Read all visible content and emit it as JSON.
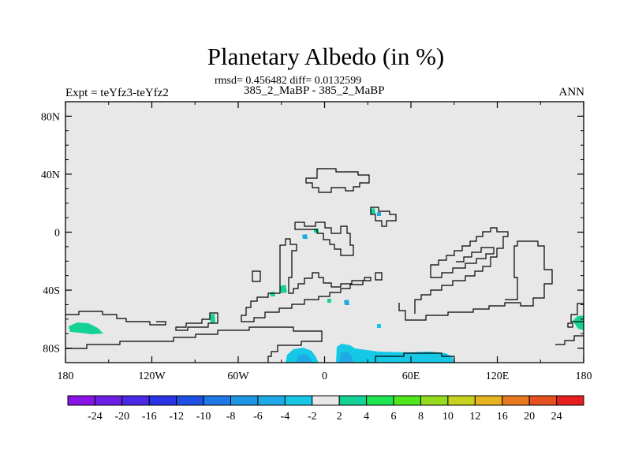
{
  "title": "Planetary Albedo (in %)",
  "stats_line": "rmsd= 0.456482 diff= 0.0132599",
  "case_line": "385_2_MaBP - 385_2_MaBP",
  "experiment_label": "Expt = teYfz3-teYfz2",
  "season_label": "ANN",
  "colors": {
    "background": "#e8e8e8",
    "coastline": "#000000",
    "frame": "#000000"
  },
  "map": {
    "lat_ticks": [
      "80N",
      "40N",
      "0",
      "40S",
      "80S"
    ],
    "lon_ticks": [
      "180",
      "120W",
      "60W",
      "0",
      "60E",
      "120E",
      "180"
    ]
  },
  "colorbar": {
    "labels": [
      "-24",
      "-20",
      "-16",
      "-12",
      "-10",
      "-8",
      "-6",
      "-4",
      "-2",
      "2",
      "4",
      "6",
      "8",
      "10",
      "12",
      "16",
      "20",
      "24"
    ],
    "colors": [
      "#8a14e6",
      "#6a1ee6",
      "#4a28e6",
      "#2a32e6",
      "#1e50e6",
      "#1e78e6",
      "#1e96e6",
      "#1eaae6",
      "#14c8e6",
      "#e8e8e8",
      "#14d296",
      "#1ee650",
      "#50e61e",
      "#96dc1e",
      "#c8d21e",
      "#e6b41e",
      "#e6781e",
      "#e6501e",
      "#e61e1e"
    ]
  },
  "chart_data": {
    "type": "heatmap",
    "title": "Planetary Albedo (in %)",
    "x_range": [
      -180,
      180
    ],
    "y_range": [
      -90,
      90
    ],
    "x_ticks": [
      -180,
      -120,
      -60,
      0,
      60,
      120,
      180
    ],
    "y_ticks": [
      80,
      40,
      0,
      -40,
      -80
    ],
    "contour_levels": [
      -24,
      -20,
      -16,
      -12,
      -10,
      -8,
      -6,
      -4,
      -2,
      2,
      4,
      6,
      8,
      10,
      12,
      16,
      20,
      24
    ],
    "rmsd": 0.456482,
    "diff": 0.0132599,
    "notable_anomalies": [
      {
        "region": "Antarctic coast",
        "lon_range": [
          -25,
          -5
        ],
        "lat_range": [
          -90,
          -82
        ],
        "value_range": [
          -6,
          -4
        ]
      },
      {
        "region": "Antarctic coast",
        "lon_range": [
          10,
          90
        ],
        "lat_range": [
          -90,
          -79
        ],
        "value_range": [
          -6,
          -4
        ]
      },
      {
        "region": "Southern Ocean",
        "lon_range": [
          -178,
          -155
        ],
        "lat_range": [
          -72,
          -66
        ],
        "value_range": [
          2,
          4
        ]
      },
      {
        "region": "Southern Ocean",
        "lon_range": [
          172,
          180
        ],
        "lat_range": [
          -72,
          -64
        ],
        "value_range": [
          2,
          4
        ]
      }
    ]
  }
}
